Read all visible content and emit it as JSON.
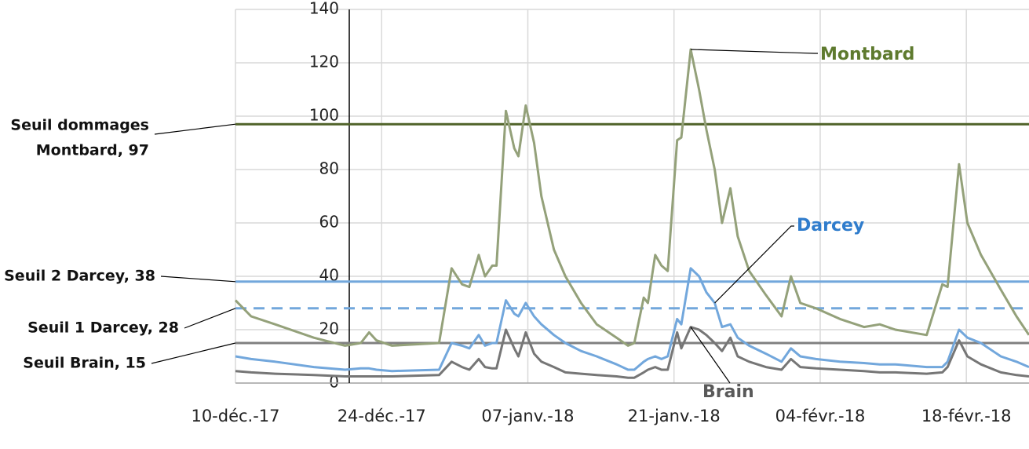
{
  "chart_data": {
    "type": "line",
    "x": [
      0,
      1.5,
      3.8,
      7.5,
      10.5,
      12,
      12.8,
      13.5,
      15,
      19.5,
      20.7,
      21.7,
      22.4,
      23.3,
      23.9,
      24.6,
      25,
      25.9,
      26.7,
      27.1,
      27.8,
      28.6,
      29.3,
      30.5,
      31.6,
      33.1,
      34.6,
      36.5,
      37.6,
      38.2,
      39.1,
      39.5,
      40.2,
      40.8,
      41.4,
      42.3,
      42.7,
      43.6,
      44.4,
      45.1,
      45.9,
      46.6,
      47.4,
      48.1,
      49.2,
      50.8,
      52.3,
      53.2,
      54.1,
      55.6,
      57.9,
      60.2,
      61.7,
      63.2,
      66.2,
      67.7,
      68.2,
      69.3,
      70.1,
      71.4,
      73.3,
      74.8,
      76
    ],
    "series": [
      {
        "name": "Montbard",
        "color": "#94a17a",
        "label_color": "#5e7a2e",
        "values": [
          31,
          25,
          22,
          17,
          14,
          15,
          19,
          16,
          14,
          15,
          43,
          37,
          36,
          48,
          40,
          44,
          44,
          102,
          88,
          85,
          104,
          90,
          70,
          50,
          40,
          30,
          22,
          17,
          14,
          15,
          32,
          30,
          48,
          44,
          42,
          91,
          92,
          125,
          110,
          95,
          80,
          60,
          73,
          55,
          42,
          33,
          25,
          40,
          30,
          28,
          24,
          21,
          22,
          20,
          18,
          37,
          36,
          82,
          60,
          48,
          35,
          25,
          18
        ]
      },
      {
        "name": "Darcey",
        "color": "#72a7dc",
        "label_color": "#2f7ccc",
        "values": [
          10,
          9,
          8,
          6,
          5,
          5.5,
          5.5,
          5,
          4.5,
          5,
          15,
          14,
          13,
          18,
          14,
          15,
          15,
          31,
          26,
          25,
          30,
          25,
          22,
          18,
          15,
          12,
          10,
          7,
          5,
          5,
          8,
          9,
          10,
          9,
          10,
          24,
          22,
          43,
          40,
          34,
          30,
          21,
          22,
          17,
          14,
          11,
          8,
          13,
          10,
          9,
          8,
          7.5,
          7,
          7,
          6,
          6,
          8,
          20,
          17,
          15,
          10,
          8,
          6
        ]
      },
      {
        "name": "Brain",
        "color": "#767676",
        "label_color": "#595959",
        "values": [
          4.5,
          4,
          3.5,
          3,
          2.5,
          2.5,
          2.5,
          2.5,
          2.5,
          3,
          8,
          6,
          5,
          9,
          6,
          5.5,
          5.5,
          20,
          13,
          10,
          19,
          11,
          8,
          6,
          4,
          3.5,
          3,
          2.5,
          2,
          2,
          4,
          5,
          6,
          5,
          5,
          19,
          13,
          21,
          20,
          18,
          15,
          12,
          17,
          10,
          8,
          6,
          5,
          9,
          6,
          5.5,
          5,
          4.5,
          4,
          4,
          3.5,
          4,
          6,
          16,
          10,
          7,
          4,
          3,
          2.5
        ]
      }
    ],
    "thresholds": [
      {
        "label_lines": [
          "Seuil dommages",
          "Montbard, 97"
        ],
        "value": 97,
        "color": "#4f6228",
        "dashed": false
      },
      {
        "label_lines": [
          "Seuil 2 Darcey, 38"
        ],
        "value": 38,
        "color": "#72a7dc",
        "dashed": false
      },
      {
        "label_lines": [
          "Seuil 1 Darcey, 28"
        ],
        "value": 28,
        "color": "#72a7dc",
        "dashed": true
      },
      {
        "label_lines": [
          "Seuil Brain, 15"
        ],
        "value": 15,
        "color": "#808080",
        "dashed": false
      }
    ],
    "xlim": [
      0,
      76
    ],
    "xticks": [
      {
        "value": 0,
        "label": "10-déc.-17"
      },
      {
        "value": 14,
        "label": "24-déc.-17"
      },
      {
        "value": 28,
        "label": "07-janv.-18"
      },
      {
        "value": 42,
        "label": "21-janv.-18"
      },
      {
        "value": 56,
        "label": "04-févr.-18"
      },
      {
        "value": 70,
        "label": "18-févr.-18"
      }
    ],
    "ylim": [
      0,
      140
    ],
    "yticks": [
      0,
      20,
      40,
      60,
      80,
      100,
      120,
      140
    ],
    "grid": true
  }
}
